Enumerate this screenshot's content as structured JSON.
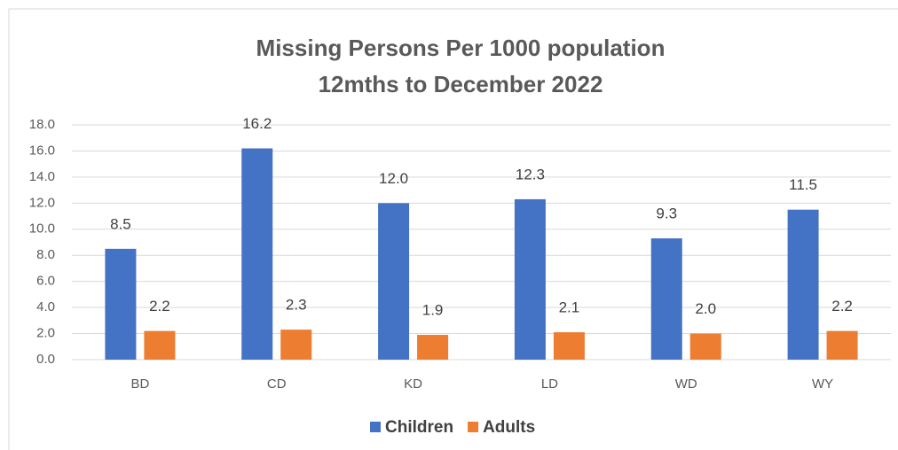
{
  "chart_data": {
    "type": "bar",
    "title": "Missing Persons Per 1000 population",
    "subtitle": "12mths to December 2022",
    "categories": [
      "BD",
      "CD",
      "KD",
      "LD",
      "WD",
      "WY"
    ],
    "series": [
      {
        "name": "Children",
        "color": "#4472c4",
        "values": [
          8.5,
          16.2,
          12.0,
          12.3,
          9.3,
          11.5
        ],
        "value_labels": [
          "8.5",
          "16.2",
          "12.0",
          "12.3",
          "9.3",
          "11.5"
        ]
      },
      {
        "name": "Adults",
        "color": "#ed7d31",
        "values": [
          2.2,
          2.3,
          1.9,
          2.1,
          2.0,
          2.2
        ],
        "value_labels": [
          "2.2",
          "2.3",
          "1.9",
          "2.1",
          "2.0",
          "2.2"
        ]
      }
    ],
    "ylim": [
      0,
      18
    ],
    "yticks": [
      {
        "value": 0,
        "label": "0.0"
      },
      {
        "value": 2,
        "label": "2.0"
      },
      {
        "value": 4,
        "label": "4.0"
      },
      {
        "value": 6,
        "label": "6.0"
      },
      {
        "value": 8,
        "label": "8.0"
      },
      {
        "value": 10,
        "label": "10.0"
      },
      {
        "value": 12,
        "label": "12.0"
      },
      {
        "value": 14,
        "label": "14.0"
      },
      {
        "value": 16,
        "label": "16.0"
      },
      {
        "value": 18,
        "label": "18.0"
      }
    ],
    "grid": true,
    "legend": "bottom"
  }
}
